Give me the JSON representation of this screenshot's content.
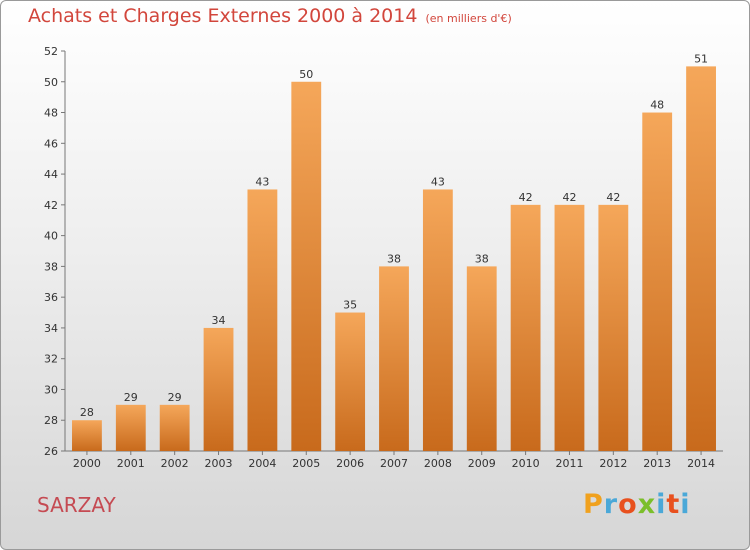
{
  "title": "Achats et Charges Externes 2000 à 2014",
  "subtitle": "(en milliers d'€)",
  "commune": "SARZAY",
  "logo": {
    "letters": [
      "P",
      "r",
      "o",
      "x",
      "i",
      "t",
      "i"
    ],
    "colors": [
      "#f0a11e",
      "#4aa8d8",
      "#e8501e",
      "#7bbf2a",
      "#4aa8d8",
      "#e8501e",
      "#4aa8d8"
    ]
  },
  "colors": {
    "title": "#d2463c",
    "bar_light": "#f5a75a",
    "bar_dark": "#c86a1c",
    "commune": "#c54a52"
  },
  "chart_data": {
    "type": "bar",
    "title": "Achats et Charges Externes 2000 à 2014",
    "subtitle": "(en milliers d'€)",
    "xlabel": "",
    "ylabel": "",
    "categories": [
      "2000",
      "2001",
      "2002",
      "2003",
      "2004",
      "2005",
      "2006",
      "2007",
      "2008",
      "2009",
      "2010",
      "2011",
      "2012",
      "2013",
      "2014"
    ],
    "values": [
      28,
      29,
      29,
      34,
      43,
      50,
      35,
      38,
      43,
      38,
      42,
      42,
      42,
      48,
      51
    ],
    "ylim": [
      26,
      52
    ],
    "yticks": [
      26,
      28,
      30,
      32,
      34,
      36,
      38,
      40,
      42,
      44,
      46,
      48,
      50,
      52
    ],
    "grid": false,
    "legend": "none"
  }
}
